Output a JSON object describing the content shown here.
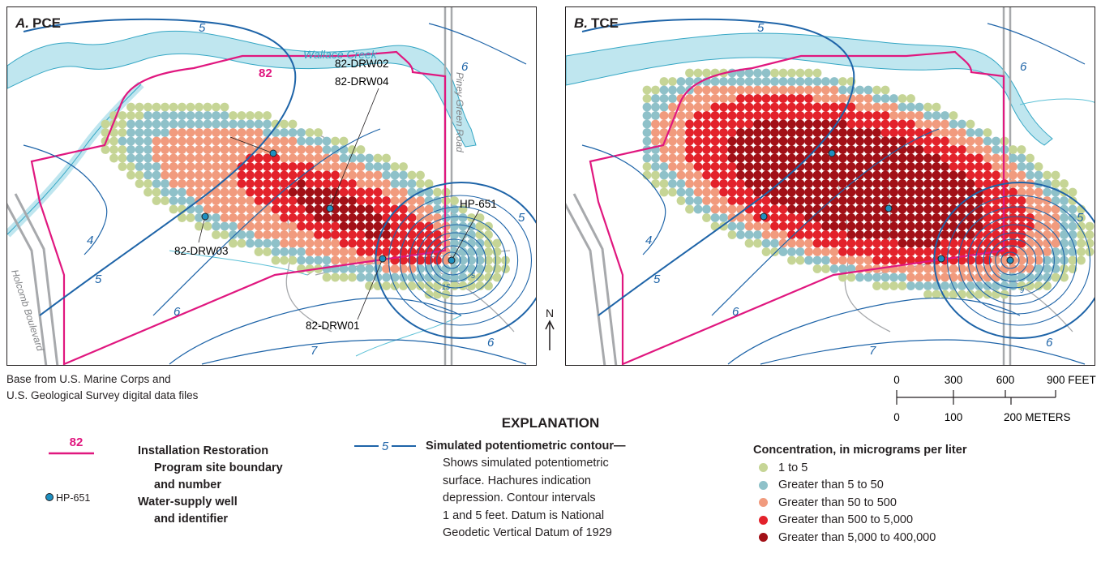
{
  "panels": [
    {
      "label_letter": "A.",
      "label_chem": "PCE"
    },
    {
      "label_letter": "B.",
      "label_chem": "TCE"
    }
  ],
  "map_labels": {
    "creek": "Wallace Creek",
    "site_number": "82",
    "road_piney": "Piney Green Road",
    "road_holcomb": "Holcomb Boulevard",
    "wells": [
      "82-DRW02",
      "82-DRW04",
      "HP-651",
      "82-DRW03",
      "82-DRW01"
    ],
    "contours_a": [
      "5",
      "6",
      "5",
      "4",
      "5",
      "6",
      "6",
      "7",
      "15",
      "5"
    ],
    "contours_b": [
      "5",
      "6",
      "5",
      "4",
      "5",
      "6",
      "6",
      "7",
      "9"
    ]
  },
  "north_label": "N",
  "base_credit": [
    "Base from U.S. Marine Corps and",
    "U.S. Geological Survey digital data files"
  ],
  "scale": {
    "feet_ticks": [
      "0",
      "300",
      "600",
      "900 FEET"
    ],
    "meter_ticks": [
      "0",
      "100",
      "200 METERS"
    ]
  },
  "explanation": {
    "title": "EXPLANATION",
    "irp_symbol_number": "82",
    "irp_label": [
      "Installation Restoration",
      "Program site boundary",
      "and number"
    ],
    "well_symbol_label": "HP-651",
    "well_label": [
      "Water-supply well",
      "and identifier"
    ],
    "contour_symbol_number": "5",
    "contour_title": "Simulated potentiometric contour",
    "contour_desc": [
      "Shows simulated potentiometric",
      "surface. Hachures indication",
      "depression. Contour intervals",
      "1 and 5 feet. Datum is National",
      "Geodetic Vertical Datum of 1929"
    ],
    "concentration_title": "Concentration, in micrograms per liter",
    "concentration_classes": [
      {
        "label": "1 to 5",
        "color": "#c6d596"
      },
      {
        "label": "Greater than 5 to 50",
        "color": "#8fc1c9"
      },
      {
        "label": "Greater than 50 to 500",
        "color": "#f19b7e"
      },
      {
        "label": "Greater than 500 to 5,000",
        "color": "#e3222b"
      },
      {
        "label": "Greater than 5,000 to 400,000",
        "color": "#a21017"
      }
    ]
  },
  "colors": {
    "boundary": "#e0177f",
    "contour": "#1e64a8",
    "water": "#bfe6ef",
    "water_edge": "#34a6c4",
    "road": "#a7a9ac",
    "stream": "#5bc0d6"
  }
}
